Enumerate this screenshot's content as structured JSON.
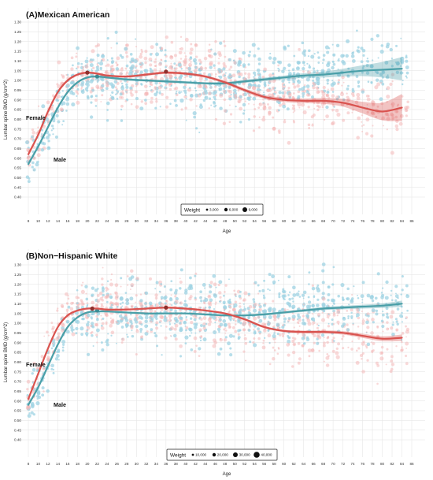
{
  "colors": {
    "male": "#4a9fa8",
    "male_points": "#9fd3e3",
    "female": "#d9534f",
    "female_points": "#f4b8b8",
    "grid": "#e6e6e6"
  },
  "chart_data": [
    {
      "type": "scatter",
      "title": "(A)Mexican American",
      "xlabel": "Age",
      "ylabel": "Lumbar spine BMD (g/cm^2)",
      "xlim": [
        8,
        86
      ],
      "ylim": [
        0.4,
        1.3
      ],
      "x_ticks": [
        "8",
        "10",
        "12",
        "14",
        "16",
        "18",
        "20",
        "22",
        "24",
        "26",
        "28",
        "30",
        "32",
        "34",
        "36",
        "38",
        "40",
        "42",
        "44",
        "46",
        "48",
        "50",
        "52",
        "54",
        "56",
        "58",
        "60",
        "62",
        "64",
        "66",
        "68",
        "70",
        "72",
        "74",
        "76",
        "78",
        "80",
        "82",
        "84",
        "86"
      ],
      "y_ticks": [
        "0.40",
        "0.45",
        "0.50",
        "0.55",
        "0.60",
        "0.65",
        "0.70",
        "0.75",
        "0.80",
        "0.85",
        "0.90",
        "0.95",
        "1.00",
        "1.05",
        "1.10",
        "1.15",
        "1.20",
        "1.25",
        "1.30"
      ],
      "grid": true,
      "legend": {
        "title": "Weight",
        "placement": "bottom-center",
        "entries": [
          "3,000",
          "6,000",
          "9,000"
        ]
      },
      "curve_labels": {
        "female": "Female",
        "male": "Male"
      },
      "series": [
        {
          "name": "Male",
          "x": [
            8,
            10,
            12,
            14,
            16,
            18,
            20,
            22,
            24,
            28,
            32,
            36,
            40,
            44,
            48,
            52,
            56,
            60,
            64,
            68,
            72,
            76,
            80,
            84
          ],
          "y": [
            0.57,
            0.66,
            0.76,
            0.86,
            0.94,
            0.99,
            1.015,
            1.02,
            1.015,
            1.005,
            1.0,
            0.995,
            0.99,
            0.985,
            0.985,
            0.995,
            1.005,
            1.015,
            1.025,
            1.03,
            1.04,
            1.05,
            1.055,
            1.06
          ],
          "ci_halfwidth": [
            0.012,
            0.008,
            0.007,
            0.007,
            0.007,
            0.006,
            0.006,
            0.006,
            0.006,
            0.006,
            0.006,
            0.006,
            0.006,
            0.006,
            0.007,
            0.008,
            0.009,
            0.01,
            0.012,
            0.015,
            0.02,
            0.028,
            0.04,
            0.06
          ],
          "markers": [
            {
              "x": 22,
              "y": 1.02
            }
          ]
        },
        {
          "name": "Female",
          "x": [
            8,
            10,
            12,
            14,
            16,
            18,
            20,
            22,
            24,
            28,
            32,
            36,
            40,
            44,
            48,
            52,
            56,
            60,
            64,
            68,
            72,
            76,
            80,
            84
          ],
          "y": [
            0.62,
            0.72,
            0.84,
            0.94,
            1.0,
            1.03,
            1.04,
            1.035,
            1.025,
            1.02,
            1.03,
            1.04,
            1.035,
            1.02,
            0.99,
            0.95,
            0.915,
            0.9,
            0.895,
            0.895,
            0.885,
            0.86,
            0.84,
            0.86
          ],
          "ci_halfwidth": [
            0.012,
            0.008,
            0.007,
            0.007,
            0.007,
            0.006,
            0.006,
            0.006,
            0.006,
            0.006,
            0.006,
            0.007,
            0.007,
            0.007,
            0.008,
            0.009,
            0.01,
            0.011,
            0.012,
            0.015,
            0.02,
            0.03,
            0.045,
            0.07
          ],
          "markers": [
            {
              "x": 20,
              "y": 1.04
            },
            {
              "x": 36,
              "y": 1.045
            }
          ]
        }
      ]
    },
    {
      "type": "scatter",
      "title": "(B)Non−Hispanic White",
      "xlabel": "Age",
      "ylabel": "Lumbar spine BMD (g/cm^2)",
      "xlim": [
        8,
        86
      ],
      "ylim": [
        0.4,
        1.3
      ],
      "x_ticks": [
        "8",
        "10",
        "12",
        "14",
        "16",
        "18",
        "20",
        "22",
        "24",
        "26",
        "28",
        "30",
        "32",
        "34",
        "36",
        "38",
        "40",
        "42",
        "44",
        "46",
        "48",
        "50",
        "52",
        "54",
        "56",
        "58",
        "60",
        "62",
        "64",
        "66",
        "68",
        "70",
        "72",
        "74",
        "76",
        "78",
        "80",
        "82",
        "84",
        "86"
      ],
      "y_ticks": [
        "0.40",
        "0.45",
        "0.50",
        "0.55",
        "0.60",
        "0.65",
        "0.70",
        "0.75",
        "0.80",
        "0.85",
        "0.90",
        "0.95",
        "1.00",
        "1.05",
        "1.10",
        "1.15",
        "1.20",
        "1.25",
        "1.30"
      ],
      "grid": true,
      "legend": {
        "title": "Weight",
        "placement": "bottom-center",
        "entries": [
          "10,000",
          "20,000",
          "30,000",
          "40,000"
        ]
      },
      "curve_labels": {
        "female": "Female",
        "male": "Male"
      },
      "series": [
        {
          "name": "Male",
          "x": [
            8,
            10,
            12,
            14,
            16,
            18,
            20,
            22,
            24,
            28,
            32,
            36,
            40,
            44,
            48,
            52,
            56,
            60,
            64,
            68,
            72,
            76,
            80,
            84
          ],
          "y": [
            0.58,
            0.67,
            0.78,
            0.89,
            0.98,
            1.03,
            1.055,
            1.06,
            1.06,
            1.055,
            1.05,
            1.05,
            1.05,
            1.045,
            1.04,
            1.04,
            1.045,
            1.055,
            1.065,
            1.075,
            1.08,
            1.085,
            1.09,
            1.1
          ],
          "ci_halfwidth": [
            0.01,
            0.007,
            0.006,
            0.006,
            0.005,
            0.005,
            0.005,
            0.005,
            0.005,
            0.005,
            0.005,
            0.005,
            0.005,
            0.005,
            0.005,
            0.005,
            0.006,
            0.006,
            0.007,
            0.008,
            0.009,
            0.01,
            0.012,
            0.016
          ],
          "markers": [
            {
              "x": 22,
              "y": 1.065
            }
          ]
        },
        {
          "name": "Female",
          "x": [
            8,
            10,
            12,
            14,
            16,
            18,
            20,
            22,
            24,
            28,
            32,
            36,
            40,
            44,
            48,
            52,
            56,
            60,
            64,
            68,
            72,
            76,
            80,
            84
          ],
          "y": [
            0.61,
            0.74,
            0.87,
            0.98,
            1.04,
            1.065,
            1.075,
            1.075,
            1.07,
            1.07,
            1.075,
            1.08,
            1.075,
            1.065,
            1.05,
            1.02,
            0.98,
            0.96,
            0.955,
            0.955,
            0.95,
            0.935,
            0.92,
            0.925
          ],
          "ci_halfwidth": [
            0.01,
            0.007,
            0.006,
            0.006,
            0.005,
            0.005,
            0.005,
            0.005,
            0.005,
            0.005,
            0.005,
            0.005,
            0.005,
            0.005,
            0.005,
            0.006,
            0.006,
            0.006,
            0.007,
            0.008,
            0.009,
            0.011,
            0.013,
            0.017
          ],
          "markers": [
            {
              "x": 21,
              "y": 1.075
            },
            {
              "x": 36,
              "y": 1.08
            }
          ]
        }
      ]
    }
  ]
}
